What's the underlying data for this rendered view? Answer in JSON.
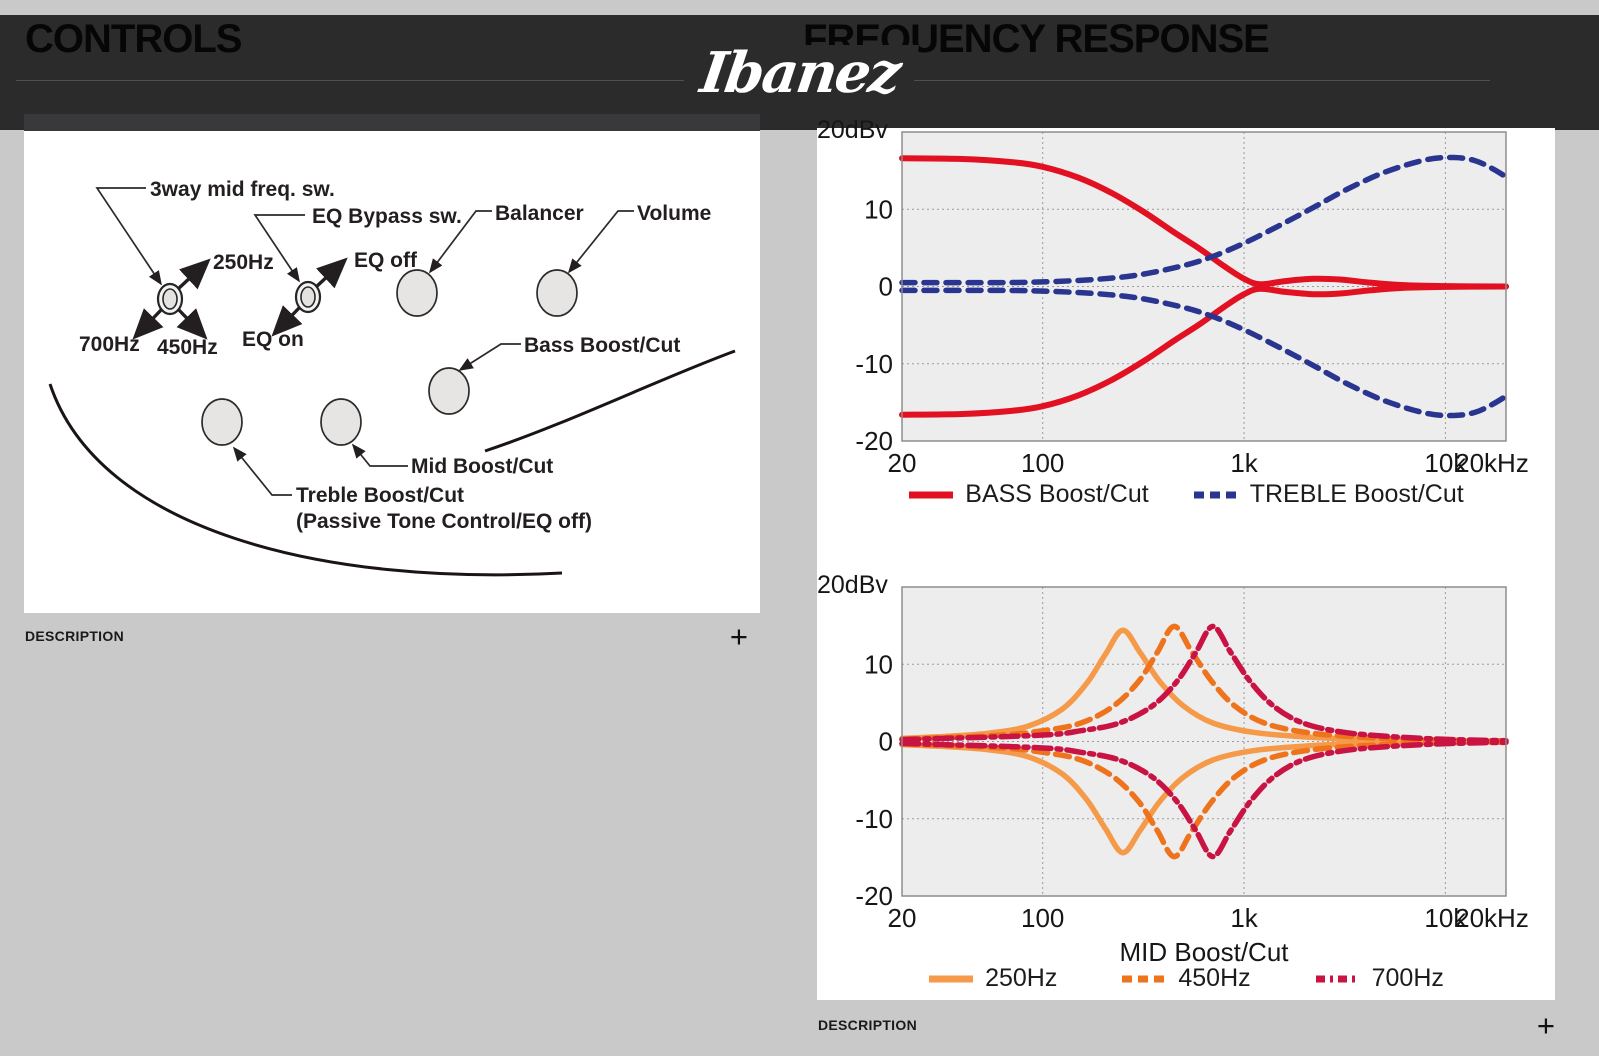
{
  "page": {
    "background": "#c9c9c9"
  },
  "header": {
    "bg": "#2b2b2c",
    "left_title": "CONTROLS",
    "right_title": "FREQUENCY RESPONSE",
    "brand": "Ibanez"
  },
  "controls": {
    "labels": {
      "three_way": "3way mid freq. sw.",
      "f250": "250Hz",
      "f450": "450Hz",
      "f700": "700Hz",
      "eq_bypass": "EQ Bypass sw.",
      "eq_off": "EQ off",
      "eq_on": "EQ on",
      "balancer": "Balancer",
      "volume": "Volume",
      "bass": "Bass Boost/Cut",
      "mid": "Mid Boost/Cut",
      "treble": "Treble Boost/Cut",
      "treble_note": "(Passive Tone Control/EQ off)"
    },
    "description": "DESCRIPTION",
    "expand": "+"
  },
  "freq_response": {
    "description": "DESCRIPTION",
    "expand": "+"
  },
  "chart_data": [
    {
      "type": "line",
      "x_scale": "log",
      "xlim": [
        20,
        20000
      ],
      "ylim": [
        -20,
        20
      ],
      "unit_label": "20dBv",
      "xlabel": "",
      "grid": true,
      "legend_position": "bottom",
      "x_ticks": [
        {
          "v": 20,
          "label": "20"
        },
        {
          "v": 100,
          "label": "100"
        },
        {
          "v": 1000,
          "label": "1k"
        },
        {
          "v": 10000,
          "label": "10k"
        },
        {
          "v": 20000,
          "label": "20kHz"
        }
      ],
      "y_ticks": [
        {
          "v": 10,
          "label": "10"
        },
        {
          "v": 0,
          "label": "0"
        },
        {
          "v": -10,
          "label": "-10"
        },
        {
          "v": -20,
          "label": "-20"
        }
      ],
      "grid_x": [
        100,
        1000,
        10000
      ],
      "grid_y": [
        10,
        0,
        -10
      ],
      "series": [
        {
          "name": "BASS Boost/Cut",
          "color": "#e21122",
          "dash": null,
          "legend_dash": null,
          "width": 6,
          "legend": true,
          "points": [
            [
              20,
              16.6
            ],
            [
              40,
              16.5
            ],
            [
              70,
              16.1
            ],
            [
              100,
              15.5
            ],
            [
              150,
              14.1
            ],
            [
              220,
              12.1
            ],
            [
              320,
              9.6
            ],
            [
              450,
              7.0
            ],
            [
              600,
              4.9
            ],
            [
              800,
              2.6
            ],
            [
              1000,
              1.0
            ],
            [
              1200,
              0.3
            ],
            [
              1600,
              0.7
            ],
            [
              2200,
              1.0
            ],
            [
              3000,
              0.9
            ],
            [
              4200,
              0.5
            ],
            [
              6000,
              0.2
            ],
            [
              10000,
              0.05
            ],
            [
              20000,
              0
            ]
          ]
        },
        {
          "name": "BASS Boost/Cut (cut)",
          "color": "#e21122",
          "dash": null,
          "legend_dash": null,
          "width": 6,
          "legend": false,
          "points": [
            [
              20,
              -16.6
            ],
            [
              40,
              -16.5
            ],
            [
              70,
              -16.1
            ],
            [
              100,
              -15.5
            ],
            [
              150,
              -14.1
            ],
            [
              220,
              -12.1
            ],
            [
              320,
              -9.6
            ],
            [
              450,
              -7.0
            ],
            [
              600,
              -4.9
            ],
            [
              800,
              -2.6
            ],
            [
              1000,
              -1.0
            ],
            [
              1200,
              -0.3
            ],
            [
              1600,
              -0.7
            ],
            [
              2200,
              -1.0
            ],
            [
              3000,
              -0.9
            ],
            [
              4200,
              -0.5
            ],
            [
              6000,
              -0.2
            ],
            [
              10000,
              -0.05
            ],
            [
              20000,
              0
            ]
          ]
        },
        {
          "name": "TREBLE Boost/Cut",
          "color": "#29358f",
          "dash": "13 9",
          "legend_dash": "10 6",
          "width": 5.5,
          "legend": true,
          "points": [
            [
              20,
              0.5
            ],
            [
              60,
              0.5
            ],
            [
              100,
              0.6
            ],
            [
              180,
              0.9
            ],
            [
              300,
              1.5
            ],
            [
              500,
              2.7
            ],
            [
              700,
              3.9
            ],
            [
              1000,
              5.6
            ],
            [
              1500,
              7.9
            ],
            [
              2200,
              10.2
            ],
            [
              3200,
              12.5
            ],
            [
              5000,
              14.8
            ],
            [
              8000,
              16.4
            ],
            [
              11000,
              16.7
            ],
            [
              14000,
              16.3
            ],
            [
              17000,
              15.3
            ],
            [
              20000,
              14.2
            ]
          ]
        },
        {
          "name": "TREBLE Boost/Cut (cut)",
          "color": "#29358f",
          "dash": "13 9",
          "legend_dash": "10 6",
          "width": 5.5,
          "legend": false,
          "points": [
            [
              20,
              -0.5
            ],
            [
              60,
              -0.5
            ],
            [
              100,
              -0.6
            ],
            [
              180,
              -0.9
            ],
            [
              300,
              -1.5
            ],
            [
              500,
              -2.7
            ],
            [
              700,
              -3.9
            ],
            [
              1000,
              -5.6
            ],
            [
              1500,
              -7.9
            ],
            [
              2200,
              -10.2
            ],
            [
              3200,
              -12.5
            ],
            [
              5000,
              -14.8
            ],
            [
              8000,
              -16.4
            ],
            [
              11000,
              -16.7
            ],
            [
              14000,
              -16.3
            ],
            [
              17000,
              -15.3
            ],
            [
              20000,
              -14.2
            ]
          ]
        }
      ]
    },
    {
      "type": "line",
      "x_scale": "log",
      "xlim": [
        20,
        20000
      ],
      "ylim": [
        -20,
        20
      ],
      "unit_label": "20dBv",
      "xlabel": "MID Boost/Cut",
      "grid": true,
      "legend_position": "bottom",
      "x_ticks": [
        {
          "v": 20,
          "label": "20"
        },
        {
          "v": 100,
          "label": "100"
        },
        {
          "v": 1000,
          "label": "1k"
        },
        {
          "v": 10000,
          "label": "10k"
        },
        {
          "v": 20000,
          "label": "20kHz"
        }
      ],
      "y_ticks": [
        {
          "v": 10,
          "label": "10"
        },
        {
          "v": 0,
          "label": "0"
        },
        {
          "v": -10,
          "label": "-10"
        },
        {
          "v": -20,
          "label": "-20"
        }
      ],
      "grid_x": [
        100,
        1000,
        10000
      ],
      "grid_y": [
        10,
        0,
        -10
      ],
      "series": [
        {
          "name": "250Hz",
          "color": "#f59a49",
          "dash": null,
          "legend_dash": null,
          "width": 5.5,
          "legend": true,
          "points": [
            [
              20,
              0.4
            ],
            [
              35,
              0.7
            ],
            [
              55,
              1.1
            ],
            [
              85,
              2.0
            ],
            [
              125,
              4.2
            ],
            [
              165,
              7.5
            ],
            [
              205,
              11.3
            ],
            [
              250,
              14.4
            ],
            [
              305,
              11.5
            ],
            [
              380,
              7.8
            ],
            [
              500,
              4.6
            ],
            [
              700,
              2.4
            ],
            [
              1100,
              1.2
            ],
            [
              2000,
              0.6
            ],
            [
              4000,
              0.25
            ],
            [
              9000,
              0.1
            ],
            [
              20000,
              0.05
            ]
          ]
        },
        {
          "name": "250Hz (cut)",
          "color": "#f59a49",
          "dash": null,
          "legend_dash": null,
          "width": 5.5,
          "legend": false,
          "points": [
            [
              20,
              -0.4
            ],
            [
              35,
              -0.7
            ],
            [
              55,
              -1.1
            ],
            [
              85,
              -2.0
            ],
            [
              125,
              -4.2
            ],
            [
              165,
              -7.5
            ],
            [
              205,
              -11.3
            ],
            [
              250,
              -14.4
            ],
            [
              305,
              -11.5
            ],
            [
              380,
              -7.8
            ],
            [
              500,
              -4.6
            ],
            [
              700,
              -2.4
            ],
            [
              1100,
              -1.2
            ],
            [
              2000,
              -0.6
            ],
            [
              4000,
              -0.25
            ],
            [
              9000,
              -0.1
            ],
            [
              20000,
              -0.05
            ]
          ]
        },
        {
          "name": "450Hz",
          "color": "#ee731c",
          "dash": "14 8",
          "legend_dash": "10 6",
          "width": 5.5,
          "legend": true,
          "points": [
            [
              20,
              0.3
            ],
            [
              60,
              0.8
            ],
            [
              100,
              1.4
            ],
            [
              155,
              2.4
            ],
            [
              225,
              4.6
            ],
            [
              300,
              7.8
            ],
            [
              370,
              11.5
            ],
            [
              450,
              14.9
            ],
            [
              550,
              11.6
            ],
            [
              690,
              7.8
            ],
            [
              900,
              4.6
            ],
            [
              1260,
              2.4
            ],
            [
              2000,
              1.2
            ],
            [
              3600,
              0.6
            ],
            [
              7200,
              0.25
            ],
            [
              20000,
              0.08
            ]
          ]
        },
        {
          "name": "450Hz (cut)",
          "color": "#ee731c",
          "dash": "14 8",
          "legend_dash": "10 6",
          "width": 5.5,
          "legend": false,
          "points": [
            [
              20,
              -0.3
            ],
            [
              60,
              -0.8
            ],
            [
              100,
              -1.4
            ],
            [
              155,
              -2.4
            ],
            [
              225,
              -4.6
            ],
            [
              300,
              -7.8
            ],
            [
              370,
              -11.5
            ],
            [
              450,
              -14.9
            ],
            [
              550,
              -11.6
            ],
            [
              690,
              -7.8
            ],
            [
              900,
              -4.6
            ],
            [
              1260,
              -2.4
            ],
            [
              2000,
              -1.2
            ],
            [
              3600,
              -0.6
            ],
            [
              7200,
              -0.25
            ],
            [
              20000,
              -0.08
            ]
          ]
        },
        {
          "name": "700Hz",
          "color": "#c81343",
          "dash": "17 6 4 6",
          "legend_dash": "9 5 3 5",
          "width": 5.5,
          "legend": true,
          "points": [
            [
              20,
              0.25
            ],
            [
              95,
              0.8
            ],
            [
              155,
              1.4
            ],
            [
              240,
              2.4
            ],
            [
              350,
              4.6
            ],
            [
              465,
              7.8
            ],
            [
              575,
              11.5
            ],
            [
              700,
              14.9
            ],
            [
              855,
              11.6
            ],
            [
              1070,
              7.8
            ],
            [
              1400,
              4.6
            ],
            [
              1960,
              2.4
            ],
            [
              3100,
              1.2
            ],
            [
              5600,
              0.6
            ],
            [
              11000,
              0.25
            ],
            [
              20000,
              0.1
            ]
          ]
        },
        {
          "name": "700Hz (cut)",
          "color": "#c81343",
          "dash": "17 6 4 6",
          "legend_dash": "9 5 3 5",
          "width": 5.5,
          "legend": false,
          "points": [
            [
              20,
              -0.25
            ],
            [
              95,
              -0.8
            ],
            [
              155,
              -1.4
            ],
            [
              240,
              -2.4
            ],
            [
              350,
              -4.6
            ],
            [
              465,
              -7.8
            ],
            [
              575,
              -11.5
            ],
            [
              700,
              -14.9
            ],
            [
              855,
              -11.6
            ],
            [
              1070,
              -7.8
            ],
            [
              1400,
              -4.6
            ],
            [
              1960,
              -2.4
            ],
            [
              3100,
              -1.2
            ],
            [
              5600,
              -0.6
            ],
            [
              11000,
              -0.25
            ],
            [
              20000,
              -0.1
            ]
          ]
        }
      ]
    }
  ]
}
